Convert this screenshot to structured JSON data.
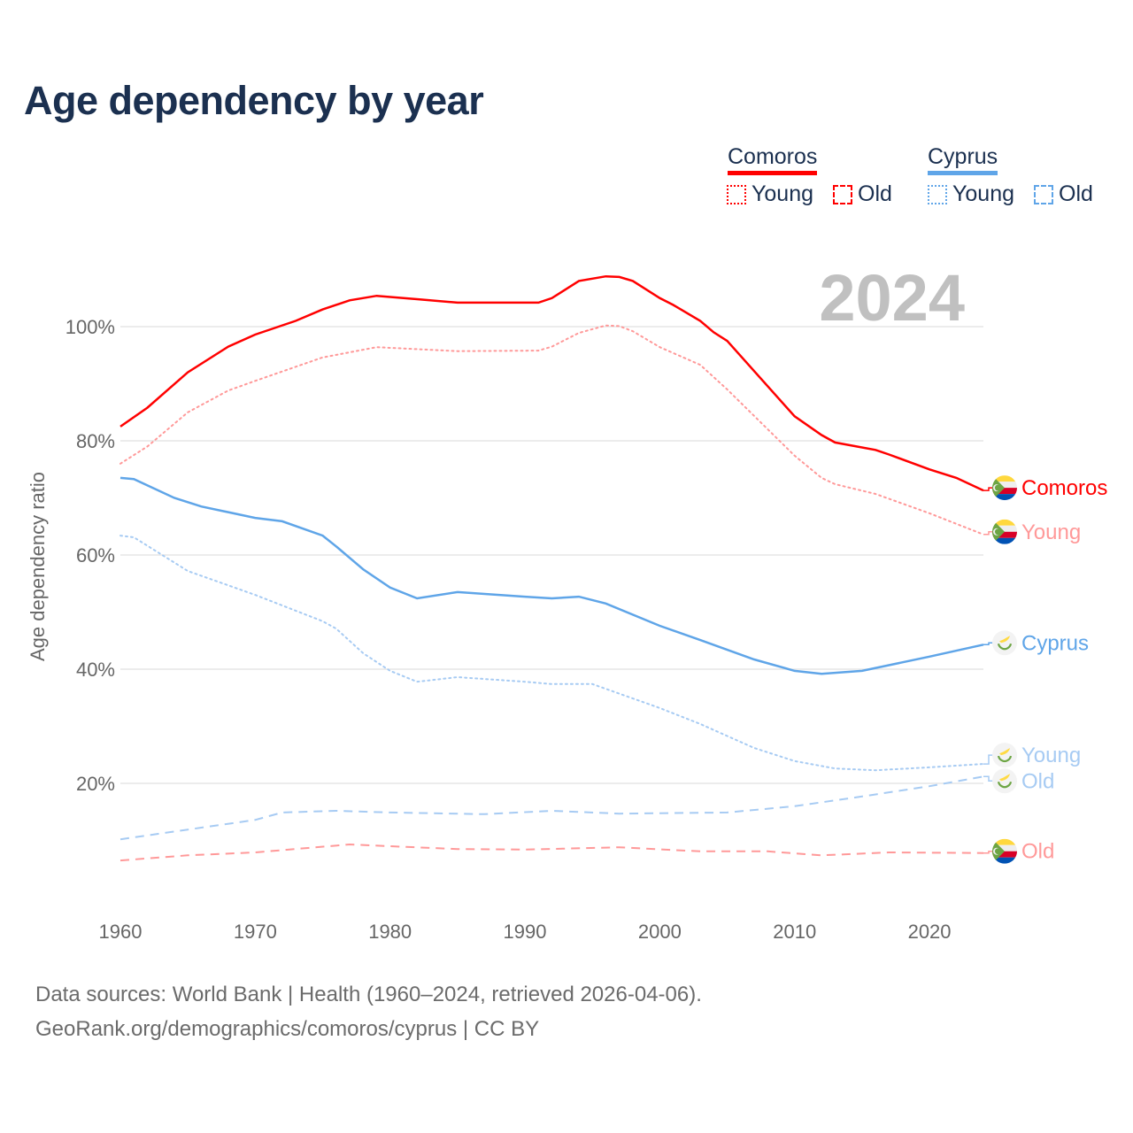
{
  "title": "Age dependency by year",
  "legend": {
    "countries": [
      {
        "name": "Comoros",
        "color": "#ff0000",
        "light": "#ff9999",
        "young": "Young",
        "old": "Old"
      },
      {
        "name": "Cyprus",
        "color": "#5fa5e8",
        "light": "#a7cbf3",
        "young": "Young",
        "old": "Old"
      }
    ]
  },
  "footer": {
    "line1": "Data sources: World Bank | Health (1960–2024, retrieved 2026-04-06).",
    "line2": "GeoRank.org/demographics/comoros/cyprus | CC BY"
  },
  "chart_data": {
    "type": "line",
    "title": "Age dependency by year",
    "year_label": "2024",
    "xlabel": "",
    "ylabel": "Age dependency ratio",
    "xlim": [
      1960,
      2024
    ],
    "ylim": [
      0,
      110
    ],
    "x_ticks": [
      "1960",
      "1970",
      "1980",
      "1990",
      "2000",
      "2010",
      "2020"
    ],
    "y_ticks": [
      {
        "value": 20,
        "label": "20%"
      },
      {
        "value": 40,
        "label": "40%"
      },
      {
        "value": 60,
        "label": "60%"
      },
      {
        "value": 80,
        "label": "80%"
      },
      {
        "value": 100,
        "label": "100%"
      }
    ],
    "grid": true,
    "series": [
      {
        "name": "Comoros",
        "label": "Comoros",
        "country": "comoros",
        "style": "solid",
        "color": "#ff0000",
        "points": [
          [
            1960,
            82.5
          ],
          [
            1962,
            85.8
          ],
          [
            1965,
            92
          ],
          [
            1968,
            96.5
          ],
          [
            1970,
            98.6
          ],
          [
            1973,
            101
          ],
          [
            1975,
            103
          ],
          [
            1977,
            104.6
          ],
          [
            1979,
            105.4
          ],
          [
            1982,
            104.8
          ],
          [
            1985,
            104.2
          ],
          [
            1991,
            104.2
          ],
          [
            1992,
            105
          ],
          [
            1994,
            108
          ],
          [
            1996,
            108.8
          ],
          [
            1997,
            108.7
          ],
          [
            1998,
            108
          ],
          [
            2000,
            105
          ],
          [
            2001,
            103.8
          ],
          [
            2003,
            101
          ],
          [
            2004,
            99
          ],
          [
            2005,
            97.5
          ],
          [
            2010,
            84.3
          ],
          [
            2012,
            81
          ],
          [
            2013,
            79.7
          ],
          [
            2016,
            78.4
          ],
          [
            2017,
            77.6
          ],
          [
            2020,
            75
          ],
          [
            2022,
            73.5
          ],
          [
            2024,
            71.3
          ]
        ]
      },
      {
        "name": "Comoros Young",
        "label": "Young",
        "country": "comoros",
        "style": "dotted",
        "color": "#ff9999",
        "points": [
          [
            1960,
            76
          ],
          [
            1962,
            79
          ],
          [
            1965,
            85
          ],
          [
            1968,
            88.8
          ],
          [
            1970,
            90.5
          ],
          [
            1975,
            94.6
          ],
          [
            1979,
            96.4
          ],
          [
            1985,
            95.7
          ],
          [
            1991,
            95.8
          ],
          [
            1992,
            96.5
          ],
          [
            1994,
            98.9
          ],
          [
            1996,
            100.2
          ],
          [
            1997,
            100.1
          ],
          [
            1998,
            99.2
          ],
          [
            2000,
            96.4
          ],
          [
            2003,
            93.3
          ],
          [
            2005,
            89
          ],
          [
            2010,
            77.4
          ],
          [
            2012,
            73.5
          ],
          [
            2013,
            72.4
          ],
          [
            2016,
            70.7
          ],
          [
            2020,
            67.3
          ],
          [
            2024,
            63.6
          ]
        ]
      },
      {
        "name": "Comoros Old",
        "label": "Old",
        "country": "comoros",
        "style": "dashed",
        "color": "#ff9999",
        "points": [
          [
            1960,
            6.5
          ],
          [
            1965,
            7.4
          ],
          [
            1970,
            7.9
          ],
          [
            1977,
            9.3
          ],
          [
            1980,
            9
          ],
          [
            1985,
            8.5
          ],
          [
            1990,
            8.4
          ],
          [
            1997,
            8.8
          ],
          [
            2003,
            8.1
          ],
          [
            2008,
            8.1
          ],
          [
            2012,
            7.4
          ],
          [
            2017,
            7.9
          ],
          [
            2024,
            7.8
          ]
        ]
      },
      {
        "name": "Cyprus",
        "label": "Cyprus",
        "country": "cyprus",
        "style": "solid",
        "color": "#5fa5e8",
        "points": [
          [
            1960,
            73.5
          ],
          [
            1961,
            73.3
          ],
          [
            1964,
            70
          ],
          [
            1966,
            68.5
          ],
          [
            1970,
            66.5
          ],
          [
            1972,
            65.9
          ],
          [
            1975,
            63.4
          ],
          [
            1976,
            61.5
          ],
          [
            1978,
            57.5
          ],
          [
            1980,
            54.3
          ],
          [
            1982,
            52.4
          ],
          [
            1985,
            53.5
          ],
          [
            1990,
            52.7
          ],
          [
            1992,
            52.4
          ],
          [
            1994,
            52.7
          ],
          [
            1996,
            51.5
          ],
          [
            2000,
            47.6
          ],
          [
            2003,
            45.1
          ],
          [
            2007,
            41.7
          ],
          [
            2010,
            39.7
          ],
          [
            2012,
            39.2
          ],
          [
            2015,
            39.7
          ],
          [
            2020,
            42.2
          ],
          [
            2024,
            44.3
          ]
        ]
      },
      {
        "name": "Cyprus Young",
        "label": "Young",
        "country": "cyprus",
        "style": "dotted",
        "color": "#a7cbf3",
        "points": [
          [
            1960,
            63.4
          ],
          [
            1961,
            63.1
          ],
          [
            1965,
            57.2
          ],
          [
            1970,
            53
          ],
          [
            1975,
            48.4
          ],
          [
            1976,
            47.1
          ],
          [
            1978,
            42.8
          ],
          [
            1980,
            39.7
          ],
          [
            1982,
            37.8
          ],
          [
            1985,
            38.6
          ],
          [
            1990,
            37.8
          ],
          [
            1992,
            37.4
          ],
          [
            1995,
            37.4
          ],
          [
            2000,
            33.2
          ],
          [
            2003,
            30.4
          ],
          [
            2007,
            26.2
          ],
          [
            2010,
            23.9
          ],
          [
            2013,
            22.6
          ],
          [
            2016,
            22.3
          ],
          [
            2020,
            22.8
          ],
          [
            2024,
            23.4
          ]
        ]
      },
      {
        "name": "Cyprus Old",
        "label": "Old",
        "country": "cyprus",
        "style": "dashed",
        "color": "#a7cbf3",
        "points": [
          [
            1960,
            10.2
          ],
          [
            1965,
            11.9
          ],
          [
            1970,
            13.6
          ],
          [
            1972,
            14.9
          ],
          [
            1976,
            15.2
          ],
          [
            1980,
            14.9
          ],
          [
            1987,
            14.6
          ],
          [
            1992,
            15.2
          ],
          [
            1997,
            14.7
          ],
          [
            2005,
            14.9
          ],
          [
            2010,
            16
          ],
          [
            2015,
            17.7
          ],
          [
            2020,
            19.5
          ],
          [
            2024,
            21.2
          ]
        ]
      }
    ]
  }
}
